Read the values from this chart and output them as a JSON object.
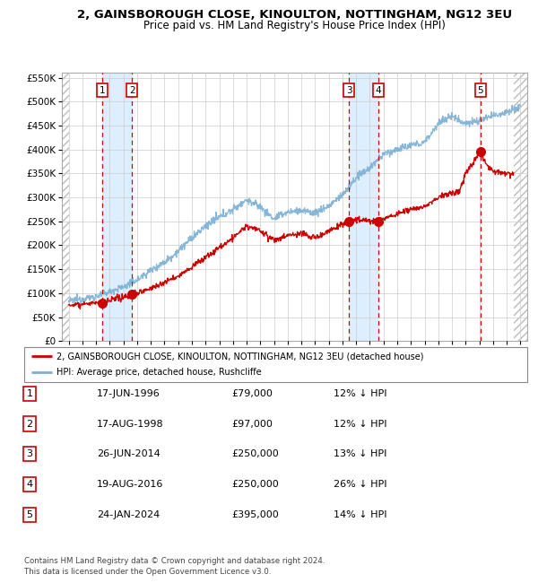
{
  "title": "2, GAINSBOROUGH CLOSE, KINOULTON, NOTTINGHAM, NG12 3EU",
  "subtitle": "Price paid vs. HM Land Registry's House Price Index (HPI)",
  "xlim_start": 1993.5,
  "xlim_end": 2027.5,
  "ylim_min": 0,
  "ylim_max": 560000,
  "yticks": [
    0,
    50000,
    100000,
    150000,
    200000,
    250000,
    300000,
    350000,
    400000,
    450000,
    500000,
    550000
  ],
  "ytick_labels": [
    "£0",
    "£50K",
    "£100K",
    "£150K",
    "£200K",
    "£250K",
    "£300K",
    "£350K",
    "£400K",
    "£450K",
    "£500K",
    "£550K"
  ],
  "sales": [
    {
      "num": 1,
      "date_year": 1996.46,
      "price": 79000,
      "label": "1",
      "date_str": "17-JUN-1996",
      "pct": "12%"
    },
    {
      "num": 2,
      "date_year": 1998.63,
      "price": 97000,
      "label": "2",
      "date_str": "17-AUG-1998",
      "pct": "12%"
    },
    {
      "num": 3,
      "date_year": 2014.48,
      "price": 250000,
      "label": "3",
      "date_str": "26-JUN-2014",
      "pct": "13%"
    },
    {
      "num": 4,
      "date_year": 2016.63,
      "price": 250000,
      "label": "4",
      "date_str": "19-AUG-2016",
      "pct": "26%"
    },
    {
      "num": 5,
      "date_year": 2024.07,
      "price": 395000,
      "label": "5",
      "date_str": "24-JAN-2024",
      "pct": "14%"
    }
  ],
  "legend_property_label": "2, GAINSBOROUGH CLOSE, KINOULTON, NOTTINGHAM, NG12 3EU (detached house)",
  "legend_hpi_label": "HPI: Average price, detached house, Rushcliffe",
  "footer_line1": "Contains HM Land Registry data © Crown copyright and database right 2024.",
  "footer_line2": "This data is licensed under the Open Government Licence v3.0.",
  "property_color": "#cc0000",
  "hpi_color": "#7ab0d4",
  "hatch_color": "#cccccc",
  "sale_region_color": "#ddeeff",
  "grid_color": "#cccccc",
  "hpi_anchors_years": [
    1994,
    1995,
    1996,
    1997,
    1998,
    1999,
    2000,
    2001,
    2002,
    2003,
    2004,
    2005,
    2006,
    2007,
    2008,
    2009,
    2010,
    2011,
    2012,
    2013,
    2014,
    2015,
    2016,
    2017,
    2018,
    2019,
    2020,
    2021,
    2022,
    2023,
    2024,
    2025,
    2026,
    2027
  ],
  "hpi_anchors_values": [
    83000,
    88000,
    93000,
    103000,
    113000,
    128000,
    148000,
    165000,
    188000,
    215000,
    240000,
    258000,
    275000,
    295000,
    280000,
    255000,
    270000,
    272000,
    268000,
    282000,
    305000,
    340000,
    362000,
    390000,
    400000,
    408000,
    415000,
    455000,
    470000,
    455000,
    460000,
    470000,
    480000,
    490000
  ],
  "prop_anchors_years": [
    1994,
    1995,
    1996.46,
    1997.5,
    1998.63,
    2000,
    2002,
    2003,
    2004,
    2006,
    2007,
    2008,
    2009,
    2010,
    2011,
    2012,
    2013,
    2014.48,
    2015,
    2016,
    2016.63,
    2017,
    2018,
    2019,
    2020,
    2021,
    2022,
    2022.5,
    2023,
    2024.07,
    2024.5,
    2025,
    2026
  ],
  "prop_anchors_values": [
    75000,
    78000,
    79000,
    88000,
    97000,
    110000,
    135000,
    155000,
    175000,
    215000,
    240000,
    230000,
    210000,
    220000,
    225000,
    215000,
    230000,
    250000,
    255000,
    250000,
    250000,
    255000,
    265000,
    275000,
    280000,
    300000,
    310000,
    310000,
    350000,
    395000,
    370000,
    355000,
    350000
  ]
}
